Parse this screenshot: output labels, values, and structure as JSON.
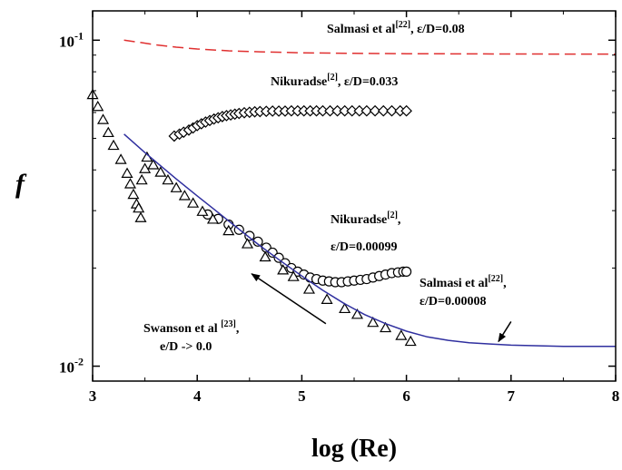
{
  "chart_data": {
    "type": "scatter",
    "xlabel": "log (Re)",
    "ylabel": "f",
    "xlim": [
      3,
      8
    ],
    "ylim": [
      0.009,
      0.123
    ],
    "y_scale": "log",
    "x_ticks": [
      {
        "value": 3,
        "label": "3"
      },
      {
        "value": 4,
        "label": "4"
      },
      {
        "value": 5,
        "label": "5"
      },
      {
        "value": 6,
        "label": "6"
      },
      {
        "value": 7,
        "label": "7"
      },
      {
        "value": 8,
        "label": "8"
      }
    ],
    "y_ticks": [
      {
        "value": 0.1,
        "base": "10",
        "exp": "-1"
      },
      {
        "value": 0.01,
        "base": "10",
        "exp": "-2"
      }
    ],
    "grid": false,
    "series": [
      {
        "kind": "dashed-line",
        "color": "#e03030",
        "points": [
          [
            3.3,
            0.1
          ],
          [
            3.45,
            0.0985
          ],
          [
            3.6,
            0.0968
          ],
          [
            3.8,
            0.0952
          ],
          [
            4.0,
            0.094
          ],
          [
            4.3,
            0.0928
          ],
          [
            4.6,
            0.0921
          ],
          [
            5.0,
            0.0915
          ],
          [
            5.5,
            0.0911
          ],
          [
            6.0,
            0.0909
          ],
          [
            7.0,
            0.0907
          ],
          [
            8.0,
            0.0906
          ]
        ]
      },
      {
        "kind": "diamond-markers",
        "color": "#000000",
        "points": [
          [
            3.78,
            0.0508
          ],
          [
            3.83,
            0.0515
          ],
          [
            3.87,
            0.0522
          ],
          [
            3.92,
            0.053
          ],
          [
            3.96,
            0.0538
          ],
          [
            4.0,
            0.0547
          ],
          [
            4.04,
            0.0554
          ],
          [
            4.08,
            0.0561
          ],
          [
            4.12,
            0.0567
          ],
          [
            4.16,
            0.0573
          ],
          [
            4.2,
            0.0578
          ],
          [
            4.24,
            0.0583
          ],
          [
            4.28,
            0.0587
          ],
          [
            4.32,
            0.059
          ],
          [
            4.36,
            0.0593
          ],
          [
            4.4,
            0.0596
          ],
          [
            4.45,
            0.0599
          ],
          [
            4.5,
            0.0601
          ],
          [
            4.55,
            0.0603
          ],
          [
            4.6,
            0.0604
          ],
          [
            4.66,
            0.0605
          ],
          [
            4.72,
            0.0606
          ],
          [
            4.78,
            0.0606
          ],
          [
            4.84,
            0.0606
          ],
          [
            4.9,
            0.0607
          ],
          [
            4.96,
            0.0607
          ],
          [
            5.02,
            0.0607
          ],
          [
            5.08,
            0.0607
          ],
          [
            5.14,
            0.0607
          ],
          [
            5.2,
            0.0607
          ],
          [
            5.27,
            0.0607
          ],
          [
            5.34,
            0.0607
          ],
          [
            5.41,
            0.0607
          ],
          [
            5.48,
            0.0607
          ],
          [
            5.55,
            0.0607
          ],
          [
            5.62,
            0.0607
          ],
          [
            5.7,
            0.0607
          ],
          [
            5.78,
            0.0607
          ],
          [
            5.86,
            0.0607
          ],
          [
            5.94,
            0.0607
          ],
          [
            6.0,
            0.0607
          ]
        ]
      },
      {
        "kind": "circle-markers",
        "color": "#000000",
        "points": [
          [
            4.1,
            0.0292
          ],
          [
            4.2,
            0.0283
          ],
          [
            4.3,
            0.0272
          ],
          [
            4.4,
            0.0262
          ],
          [
            4.5,
            0.0251
          ],
          [
            4.58,
            0.0241
          ],
          [
            4.66,
            0.0231
          ],
          [
            4.72,
            0.0223
          ],
          [
            4.78,
            0.0215
          ],
          [
            4.84,
            0.0207
          ],
          [
            4.9,
            0.02
          ],
          [
            4.96,
            0.0195
          ],
          [
            5.02,
            0.0191
          ],
          [
            5.08,
            0.0187
          ],
          [
            5.14,
            0.0185
          ],
          [
            5.2,
            0.0183
          ],
          [
            5.26,
            0.0182
          ],
          [
            5.32,
            0.0181
          ],
          [
            5.38,
            0.0181
          ],
          [
            5.44,
            0.0182
          ],
          [
            5.5,
            0.0183
          ],
          [
            5.56,
            0.0184
          ],
          [
            5.62,
            0.0185
          ],
          [
            5.68,
            0.0187
          ],
          [
            5.74,
            0.0189
          ],
          [
            5.8,
            0.0191
          ],
          [
            5.86,
            0.0193
          ],
          [
            5.92,
            0.0194
          ],
          [
            5.97,
            0.0195
          ],
          [
            6.0,
            0.0195
          ]
        ]
      },
      {
        "kind": "triangle-markers",
        "color": "#000000",
        "points": [
          [
            3.0,
            0.068
          ],
          [
            3.05,
            0.0625
          ],
          [
            3.1,
            0.057
          ],
          [
            3.15,
            0.052
          ],
          [
            3.2,
            0.0475
          ],
          [
            3.27,
            0.043
          ],
          [
            3.33,
            0.039
          ],
          [
            3.36,
            0.0362
          ],
          [
            3.39,
            0.0336
          ],
          [
            3.42,
            0.0314
          ],
          [
            3.44,
            0.0305
          ],
          [
            3.46,
            0.0285
          ],
          [
            3.47,
            0.0372
          ],
          [
            3.5,
            0.0403
          ],
          [
            3.52,
            0.0437
          ],
          [
            3.58,
            0.0414
          ],
          [
            3.65,
            0.0393
          ],
          [
            3.72,
            0.0372
          ],
          [
            3.8,
            0.0352
          ],
          [
            3.88,
            0.0333
          ],
          [
            3.96,
            0.0316
          ],
          [
            4.05,
            0.0298
          ],
          [
            4.15,
            0.0282
          ],
          [
            4.3,
            0.026
          ],
          [
            4.48,
            0.0237
          ],
          [
            4.65,
            0.0216
          ],
          [
            4.82,
            0.0197
          ],
          [
            4.92,
            0.0188
          ],
          [
            5.07,
            0.0172
          ],
          [
            5.24,
            0.016
          ],
          [
            5.41,
            0.015
          ],
          [
            5.53,
            0.0144
          ],
          [
            5.68,
            0.0136
          ],
          [
            5.8,
            0.0131
          ],
          [
            5.95,
            0.0124
          ],
          [
            6.04,
            0.0119
          ]
        ]
      },
      {
        "kind": "solid-line",
        "color": "#2f2f9f",
        "points": [
          [
            3.3,
            0.0515
          ],
          [
            3.5,
            0.0452
          ],
          [
            3.8,
            0.0375
          ],
          [
            4.0,
            0.0333
          ],
          [
            4.2,
            0.0296
          ],
          [
            4.4,
            0.0263
          ],
          [
            4.6,
            0.0234
          ],
          [
            4.8,
            0.021
          ],
          [
            5.0,
            0.0189
          ],
          [
            5.2,
            0.0171
          ],
          [
            5.4,
            0.0156
          ],
          [
            5.6,
            0.0144
          ],
          [
            5.8,
            0.0135
          ],
          [
            6.0,
            0.0128
          ],
          [
            6.2,
            0.0123
          ],
          [
            6.4,
            0.012
          ],
          [
            6.6,
            0.0118
          ],
          [
            6.8,
            0.0117
          ],
          [
            7.0,
            0.0116
          ],
          [
            7.5,
            0.0115
          ],
          [
            8.0,
            0.0115
          ]
        ]
      }
    ],
    "annotations": {
      "salmasi_top": {
        "text": "Salmasi et al",
        "ref": "[22]",
        "tail": ", ε/D=0.08"
      },
      "nikuradse_top": {
        "text": "Nikuradse",
        "ref": "[2]",
        "tail": ", ε/D=0.033"
      },
      "nikuradse_mid_1": {
        "text": "Nikuradse",
        "ref": "[2]",
        "tail": ","
      },
      "nikuradse_mid_2": {
        "text": "ε/D=0.00099"
      },
      "salmasi_right_1": {
        "text": "Salmasi et al",
        "ref": "[22]",
        "tail": ","
      },
      "salmasi_right_2": {
        "text": "ε/D=0.00008"
      },
      "swanson_1": {
        "text": "Swanson et al ",
        "ref": "[23]",
        "tail": ","
      },
      "swanson_2": {
        "text": "e/D -> 0.0"
      }
    },
    "arrows": [
      {
        "name": "swanson-arrow",
        "from": [
          5.23,
          0.0135
        ],
        "to": [
          4.52,
          0.0192
        ]
      },
      {
        "name": "salmasi-arrow",
        "from": [
          7.0,
          0.0137
        ],
        "to": [
          6.88,
          0.0119
        ]
      }
    ]
  }
}
